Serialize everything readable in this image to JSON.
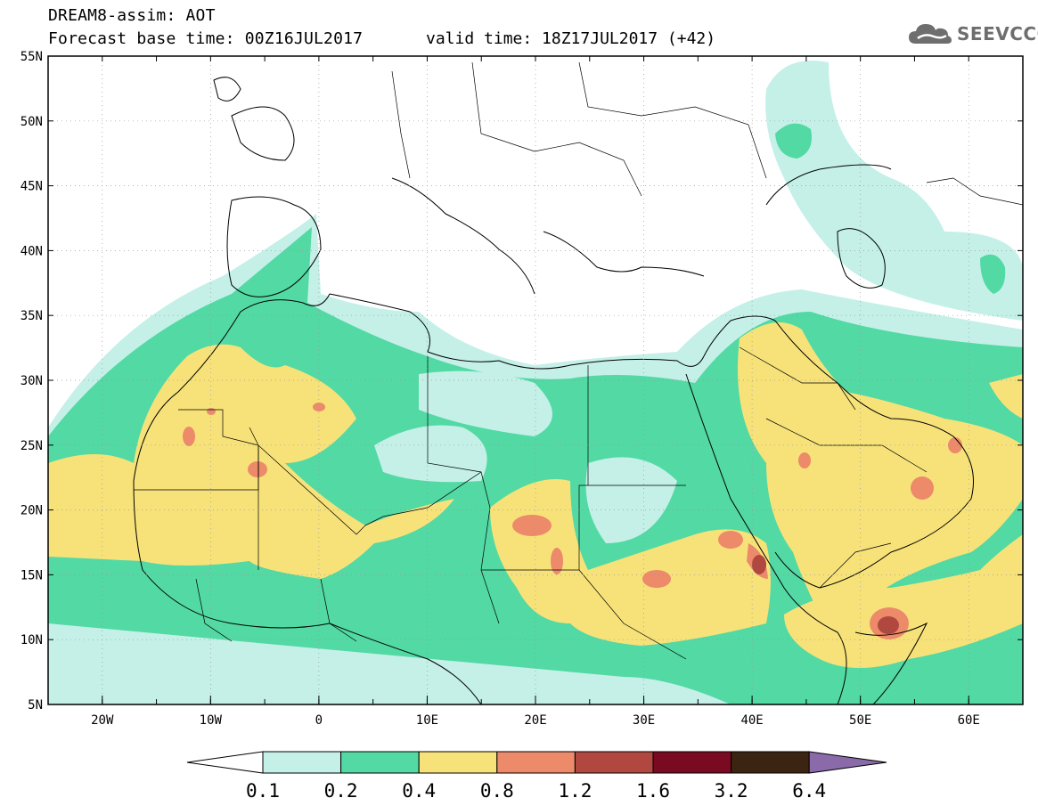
{
  "header": {
    "title": "DREAM8-assim: AOT",
    "base_time": "Forecast base time: 00Z16JUL2017",
    "valid_time": "valid time: 18Z17JUL2017 (+42)"
  },
  "logo": {
    "text": "SEEVCCC",
    "icon": "cloud-icon"
  },
  "map": {
    "lat_labels": [
      "55N",
      "50N",
      "45N",
      "40N",
      "35N",
      "30N",
      "25N",
      "20N",
      "15N",
      "10N",
      "5N"
    ],
    "lon_labels": [
      "20W",
      "10W",
      "0",
      "10E",
      "20E",
      "30E",
      "40E",
      "50E",
      "60E"
    ],
    "lat_values": [
      55,
      50,
      45,
      40,
      35,
      30,
      25,
      20,
      15,
      10,
      5
    ],
    "lon_values": [
      -20,
      -10,
      0,
      10,
      20,
      30,
      40,
      50,
      60
    ],
    "extent": {
      "lon_min": -25,
      "lon_max": 65,
      "lat_min": 5,
      "lat_max": 55
    }
  },
  "legend": {
    "levels": [
      "0.1",
      "0.2",
      "0.4",
      "0.8",
      "1.2",
      "1.6",
      "3.2",
      "6.4"
    ],
    "colors": [
      "#ffffff",
      "#c4f0e8",
      "#52d9a4",
      "#f7e27a",
      "#ec8a6a",
      "#b0483f",
      "#7a0a21",
      "#3b2411",
      "#8a6aa8"
    ]
  }
}
